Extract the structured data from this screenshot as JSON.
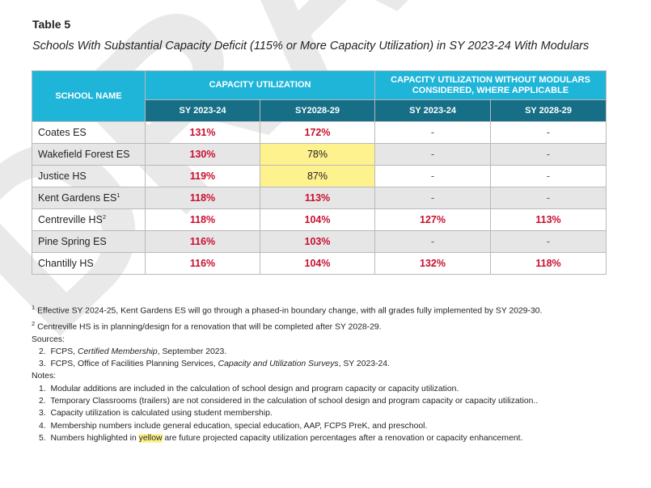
{
  "header": {
    "table_label": "Table 5",
    "table_title": "Schools With Substantial Capacity Deficit (115% or More Capacity Utilization) in SY 2023-24 With Modulars"
  },
  "watermark": {
    "text": "DRAFT",
    "color": "#e7e7e7"
  },
  "colors": {
    "header_primary": "#1fb5d9",
    "header_secondary": "#166f86",
    "over_capacity_red": "#c8102e",
    "highlight_yellow": "#fdf28e",
    "row_alt": "#e6e6e7"
  },
  "table": {
    "school_name_header": "SCHOOL NAME",
    "group1_header": "CAPACITY UTILIZATION",
    "group2_header_line1": "CAPACITY UTILIZATION WITHOUT MODULARS",
    "group2_header_line2": "CONSIDERED, WHERE APPLICABLE",
    "sub_headers": [
      "SY 2023-24",
      "SY2028-29",
      "SY 2023-24",
      "SY 2028-29"
    ],
    "rows": [
      {
        "school": "Coates ES",
        "sup": "",
        "cu_2324": "131%",
        "cu_2829": "172%",
        "nm_2324": "-",
        "nm_2829": "-"
      },
      {
        "school": "Wakefield Forest ES",
        "sup": "",
        "cu_2324": "130%",
        "cu_2829": "78%",
        "nm_2324": "-",
        "nm_2829": "-"
      },
      {
        "school": "Justice HS",
        "sup": "",
        "cu_2324": "119%",
        "cu_2829": "87%",
        "nm_2324": "-",
        "nm_2829": "-"
      },
      {
        "school": "Kent Gardens ES",
        "sup": "1",
        "cu_2324": "118%",
        "cu_2829": "113%",
        "nm_2324": "-",
        "nm_2829": "-"
      },
      {
        "school": "Centreville HS",
        "sup": "2",
        "cu_2324": "118%",
        "cu_2829": "104%",
        "nm_2324": "127%",
        "nm_2829": "113%"
      },
      {
        "school": "Pine Spring ES",
        "sup": "",
        "cu_2324": "116%",
        "cu_2829": "103%",
        "nm_2324": "-",
        "nm_2829": "-"
      },
      {
        "school": "Chantilly HS",
        "sup": "",
        "cu_2324": "116%",
        "cu_2829": "104%",
        "nm_2324": "132%",
        "nm_2829": "118%"
      }
    ]
  },
  "footnotes": {
    "fn1_mark": "1",
    "fn1_text": "Effective SY 2024-25, Kent Gardens ES will go through a phased-in boundary change, with all grades fully implemented by SY 2029-30.",
    "fn2_mark": "2",
    "fn2_text": "Centreville HS is in planning/design for a renovation that will be completed after SY 2028-29.",
    "sources_label": "Sources:",
    "source2_num": "2.",
    "source2_pre": "FCPS, ",
    "source2_em": "Certified Membership",
    "source2_post": ", September 2023.",
    "source3_num": "3.",
    "source3_pre": "FCPS, Office of Facilities Planning Services, ",
    "source3_em": "Capacity and Utilization Surveys",
    "source3_post": ", SY 2023-24.",
    "notes_label": "Notes:",
    "notes": [
      "Modular additions are included in the calculation of school design and program capacity or capacity utilization.",
      "Temporary Classrooms (trailers) are not considered in the calculation of school design and program capacity or capacity utilization..",
      "Capacity utilization is calculated using student membership.",
      "Membership numbers include general education, special education, AAP, FCPS PreK, and preschool."
    ],
    "note5_pre": "Numbers highlighted in ",
    "note5_hl": "yellow",
    "note5_post": " are future projected capacity utilization percentages after a renovation or capacity enhancement."
  }
}
